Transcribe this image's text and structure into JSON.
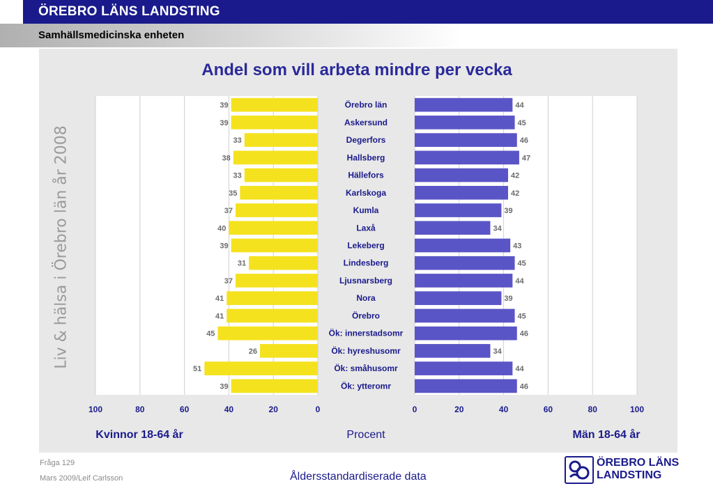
{
  "header": {
    "org": "ÖREBRO LÄNS LANDSTING",
    "unit": "Samhällsmedicinska enheten"
  },
  "side_label": "Liv & hälsa i Örebro län år 2008",
  "footer": {
    "question": "Fråga 129",
    "date": "Mars 2009/Leif Carlsson",
    "note": "Åldersstandardiserade data"
  },
  "logo": {
    "line1": "ÖREBRO LÄNS",
    "line2": "LANDSTING"
  },
  "colors": {
    "women_bar": "#f5e21e",
    "men_bar": "#5a55c6",
    "label_text": "#1a1a8c",
    "value_text": "#6b6b6b"
  },
  "chart_data": {
    "type": "bar",
    "title": "Andel som vill arbeta mindre per vecka",
    "xlabel": "Procent",
    "categories": [
      "Örebro län",
      "Askersund",
      "Degerfors",
      "Hallsberg",
      "Hällefors",
      "Karlskoga",
      "Kumla",
      "Laxå",
      "Lekeberg",
      "Lindesberg",
      "Ljusnarsberg",
      "Nora",
      "Örebro",
      "Ök: innerstadsomr",
      "Ök: hyreshusomr",
      "Ök: småhusomr",
      "Ök: ytteromr"
    ],
    "series": [
      {
        "name": "Kvinnor 18-64 år",
        "values": [
          39,
          39,
          33,
          38,
          33,
          35,
          37,
          40,
          39,
          31,
          37,
          41,
          41,
          45,
          26,
          51,
          39
        ]
      },
      {
        "name": "Män 18-64 år",
        "values": [
          44,
          45,
          46,
          47,
          42,
          42,
          39,
          34,
          43,
          45,
          44,
          39,
          45,
          46,
          34,
          44,
          46
        ]
      }
    ],
    "xlim": [
      0,
      100
    ],
    "ticks": [
      "0",
      "20",
      "40",
      "60",
      "80",
      "100"
    ],
    "grid": true
  }
}
